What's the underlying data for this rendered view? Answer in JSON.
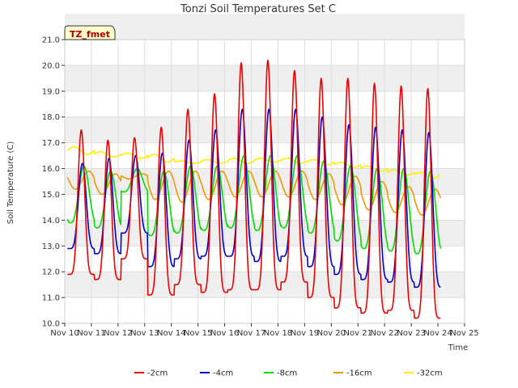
{
  "chart_data": {
    "type": "line",
    "title": "Tonzi Soil Temperatures Set C",
    "xlabel": "Time",
    "ylabel": "Soil Temperature (C)",
    "badge": "TZ_fmet",
    "ylim": [
      10.0,
      21.0
    ],
    "xlim_days": [
      10,
      25
    ],
    "yticks": [
      "10.0",
      "11.0",
      "12.0",
      "13.0",
      "14.0",
      "15.0",
      "16.0",
      "17.0",
      "18.0",
      "19.0",
      "20.0",
      "21.0"
    ],
    "xticks": [
      "Nov 10",
      "Nov 11",
      "Nov 12",
      "Nov 13",
      "Nov 14",
      "Nov 15",
      "Nov 16",
      "Nov 17",
      "Nov 18",
      "Nov 19",
      "Nov 20",
      "Nov 21",
      "Nov 22",
      "Nov 23",
      "Nov 24",
      "Nov 25"
    ],
    "grid": true,
    "legend_position": "bottom",
    "series": [
      {
        "name": "-2cm",
        "color": "#ee0000",
        "daily_min": [
          11.9,
          11.7,
          12.5,
          11.1,
          11.5,
          11.2,
          11.3,
          11.3,
          11.6,
          11.0,
          10.6,
          10.4,
          10.5,
          10.2
        ],
        "daily_max": [
          17.5,
          17.1,
          17.2,
          17.6,
          18.3,
          18.9,
          20.1,
          20.2,
          19.8,
          19.5,
          19.5,
          19.3,
          19.2,
          19.1
        ]
      },
      {
        "name": "-4cm",
        "color": "#0000cc",
        "daily_min": [
          12.9,
          12.7,
          13.5,
          12.2,
          12.5,
          12.6,
          12.6,
          12.4,
          12.6,
          12.2,
          11.9,
          11.7,
          11.6,
          11.4
        ],
        "daily_max": [
          16.2,
          16.4,
          16.5,
          16.6,
          17.1,
          17.5,
          18.3,
          18.3,
          18.3,
          18.0,
          17.7,
          17.6,
          17.5,
          17.4
        ]
      },
      {
        "name": "-8cm",
        "color": "#00dd00",
        "daily_min": [
          13.9,
          13.7,
          15.1,
          13.4,
          13.5,
          13.6,
          13.7,
          13.6,
          13.7,
          13.5,
          13.2,
          12.9,
          12.8,
          12.7
        ],
        "daily_max": [
          16.1,
          15.9,
          16.0,
          15.9,
          16.1,
          16.1,
          16.5,
          16.5,
          16.5,
          16.3,
          16.1,
          16.0,
          16.0,
          15.9
        ]
      },
      {
        "name": "-16cm",
        "color": "#ee9900",
        "daily_min": [
          15.2,
          15.0,
          15.6,
          14.8,
          14.7,
          14.8,
          14.9,
          14.9,
          14.9,
          14.8,
          14.6,
          14.4,
          14.3,
          14.2
        ],
        "daily_max": [
          15.9,
          15.8,
          15.8,
          15.9,
          15.9,
          15.9,
          15.9,
          15.9,
          15.9,
          15.8,
          15.7,
          15.5,
          15.3,
          15.2
        ]
      },
      {
        "name": "-32cm",
        "color": "#ffee00",
        "daily_min": [
          16.55,
          16.45,
          16.4,
          16.25,
          16.2,
          16.2,
          16.2,
          16.25,
          16.2,
          16.15,
          16.05,
          15.9,
          15.75,
          15.65
        ],
        "daily_max": [
          16.85,
          16.65,
          16.6,
          16.55,
          16.3,
          16.35,
          16.4,
          16.4,
          16.4,
          16.35,
          16.25,
          16.1,
          15.95,
          15.85
        ]
      }
    ]
  }
}
